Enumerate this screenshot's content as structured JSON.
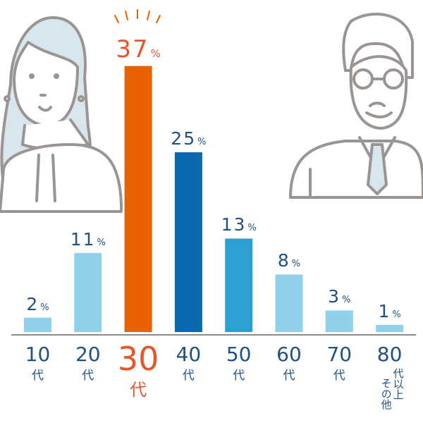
{
  "chart_data": {
    "type": "bar",
    "categories": [
      {
        "num": "10",
        "suffix": "代"
      },
      {
        "num": "20",
        "suffix": "代"
      },
      {
        "num": "30",
        "suffix": "代"
      },
      {
        "num": "40",
        "suffix": "代"
      },
      {
        "num": "50",
        "suffix": "代"
      },
      {
        "num": "60",
        "suffix": "代"
      },
      {
        "num": "70",
        "suffix": "代"
      },
      {
        "num": "80",
        "suffix": "代以上",
        "extra": "その他"
      }
    ],
    "values": [
      2,
      11,
      37,
      25,
      13,
      8,
      3,
      1
    ],
    "value_labels": [
      "2",
      "11",
      "37",
      "25",
      "13",
      "8",
      "3",
      "1"
    ],
    "unit": "%",
    "highlight_index": 2,
    "ylim": [
      0,
      37
    ],
    "grid": false,
    "bar_colors": [
      "#8fd1ea",
      "#8fd1ea",
      "#e96100",
      "#0b6aae",
      "#2d9fd3",
      "#8fd1ea",
      "#8fd1ea",
      "#8fd1ea"
    ],
    "colors": {
      "label": "#1f5283",
      "highlight_label": "#e4572a",
      "axis": "#888888"
    }
  }
}
